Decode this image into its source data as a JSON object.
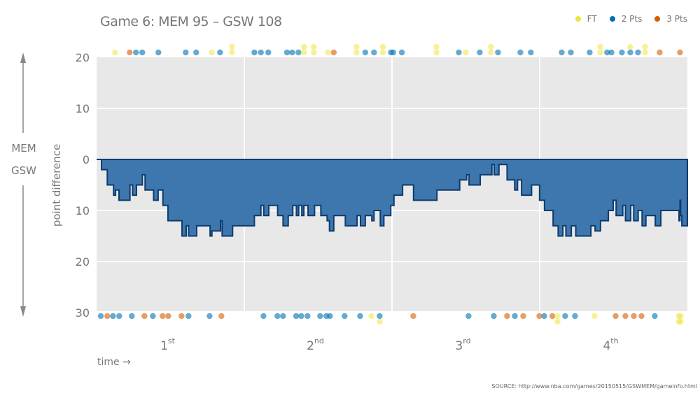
{
  "title": "Game 6: MEM 95  –  GSW 108",
  "legend": [
    {
      "label": "FT",
      "color": "#f0e442"
    },
    {
      "label": "2 Pts",
      "color": "#0072b2"
    },
    {
      "label": "3 Pts",
      "color": "#d55e00"
    }
  ],
  "side_labels": {
    "top": "MEM",
    "bottom": "GSW"
  },
  "source": "SOURCE: http://www.nba.com/games/20150515/GSWMEM/gameinfo.html",
  "chart_data": {
    "type": "area",
    "subtype": "step",
    "title": "Game 6: MEM 95  –  GSW 108",
    "xlabel": "time →",
    "ylabel": "point difference",
    "xlim": [
      0,
      48
    ],
    "ylim": [
      -30,
      20
    ],
    "y_ticks": [
      {
        "value": 20,
        "label": "20"
      },
      {
        "value": 10,
        "label": "10"
      },
      {
        "value": 0,
        "label": "0"
      },
      {
        "value": -10,
        "label": "10"
      },
      {
        "value": -20,
        "label": "20"
      },
      {
        "value": -30,
        "label": "30"
      }
    ],
    "x_ticks": [
      {
        "value": 6,
        "label": "1",
        "sup": "st"
      },
      {
        "value": 18,
        "label": "2",
        "sup": "nd"
      },
      {
        "value": 30,
        "label": "3",
        "sup": "rd"
      },
      {
        "value": 42,
        "label": "4",
        "sup": "th"
      }
    ],
    "quarter_boundaries": [
      12,
      24,
      36
    ],
    "grid": true,
    "fill_color": "#2e6ca8",
    "line_color": "#0d3b6e",
    "series": [
      {
        "points": [
          [
            0,
            0
          ],
          [
            0.4,
            -2
          ],
          [
            0.87,
            -5
          ],
          [
            1.38,
            -7
          ],
          [
            1.54,
            -6
          ],
          [
            1.82,
            -8
          ],
          [
            2.71,
            -5
          ],
          [
            2.92,
            -7
          ],
          [
            3.24,
            -5
          ],
          [
            3.72,
            -3
          ],
          [
            3.94,
            -6
          ],
          [
            4.63,
            -8
          ],
          [
            5.0,
            -6
          ],
          [
            5.39,
            -9
          ],
          [
            5.8,
            -12
          ],
          [
            6.94,
            -15
          ],
          [
            7.28,
            -13
          ],
          [
            7.47,
            -15
          ],
          [
            8.13,
            -13
          ],
          [
            9.22,
            -15
          ],
          [
            9.37,
            -14
          ],
          [
            10.07,
            -12
          ],
          [
            10.2,
            -15
          ],
          [
            11.05,
            -13
          ],
          [
            12.82,
            -11
          ],
          [
            13.35,
            -9
          ],
          [
            13.58,
            -11
          ],
          [
            13.99,
            -9
          ],
          [
            14.71,
            -11
          ],
          [
            15.15,
            -13
          ],
          [
            15.57,
            -11
          ],
          [
            15.94,
            -9
          ],
          [
            16.23,
            -11
          ],
          [
            16.42,
            -9
          ],
          [
            16.67,
            -11
          ],
          [
            16.84,
            -9
          ],
          [
            17.18,
            -11
          ],
          [
            17.71,
            -9
          ],
          [
            18.22,
            -11
          ],
          [
            18.73,
            -12
          ],
          [
            18.92,
            -14
          ],
          [
            19.27,
            -11
          ],
          [
            20.21,
            -13
          ],
          [
            21.16,
            -11
          ],
          [
            21.44,
            -13
          ],
          [
            21.83,
            -11
          ],
          [
            22.36,
            -12
          ],
          [
            22.54,
            -10
          ],
          [
            23.05,
            -13
          ],
          [
            23.34,
            -11
          ],
          [
            23.9,
            -9
          ],
          [
            24.16,
            -7
          ],
          [
            24.86,
            -5
          ],
          [
            25.75,
            -8
          ],
          [
            27.65,
            -6
          ],
          [
            29.5,
            -4
          ],
          [
            30.07,
            -3
          ],
          [
            30.26,
            -5
          ],
          [
            31.17,
            -3
          ],
          [
            32.12,
            -1
          ],
          [
            32.3,
            -3
          ],
          [
            32.69,
            -1
          ],
          [
            33.35,
            -4
          ],
          [
            33.97,
            -6
          ],
          [
            34.2,
            -4
          ],
          [
            34.53,
            -7
          ],
          [
            35.34,
            -5
          ],
          [
            35.99,
            -8
          ],
          [
            36.39,
            -10
          ],
          [
            37.09,
            -13
          ],
          [
            37.5,
            -15
          ],
          [
            37.88,
            -13
          ],
          [
            38.13,
            -15
          ],
          [
            38.57,
            -13
          ],
          [
            38.93,
            -15
          ],
          [
            40.16,
            -13
          ],
          [
            40.5,
            -14
          ],
          [
            40.94,
            -12
          ],
          [
            41.58,
            -10
          ],
          [
            41.97,
            -8
          ],
          [
            42.21,
            -11
          ],
          [
            42.75,
            -9
          ],
          [
            42.97,
            -12
          ],
          [
            43.39,
            -9
          ],
          [
            43.64,
            -12
          ],
          [
            44.0,
            -10
          ],
          [
            44.32,
            -13
          ],
          [
            44.63,
            -11
          ],
          [
            45.39,
            -13
          ],
          [
            45.84,
            -10
          ],
          [
            47.32,
            -12
          ],
          [
            47.4,
            -8
          ],
          [
            47.45,
            -11
          ],
          [
            47.55,
            -13
          ],
          [
            48,
            -13
          ]
        ]
      }
    ],
    "scoring_events": {
      "MEM": [
        [
          1.5,
          "FT"
        ],
        [
          2.69,
          "3 Pts"
        ],
        [
          3.2,
          "2 Pts"
        ],
        [
          3.71,
          "2 Pts"
        ],
        [
          5.02,
          "2 Pts"
        ],
        [
          7.24,
          "2 Pts"
        ],
        [
          8.09,
          "2 Pts"
        ],
        [
          9.35,
          "FT"
        ],
        [
          10.03,
          "2 Pts"
        ],
        [
          11.0,
          "FT"
        ],
        [
          11.0,
          "FT"
        ],
        [
          12.82,
          "2 Pts"
        ],
        [
          13.35,
          "2 Pts"
        ],
        [
          13.95,
          "2 Pts"
        ],
        [
          15.47,
          "2 Pts"
        ],
        [
          15.89,
          "2 Pts"
        ],
        [
          16.4,
          "2 Pts"
        ],
        [
          16.85,
          "FT"
        ],
        [
          16.85,
          "FT"
        ],
        [
          17.65,
          "FT"
        ],
        [
          17.65,
          "FT"
        ],
        [
          18.79,
          "FT"
        ],
        [
          19.27,
          "3 Pts"
        ],
        [
          21.12,
          "FT"
        ],
        [
          21.12,
          "FT"
        ],
        [
          21.83,
          "2 Pts"
        ],
        [
          22.54,
          "2 Pts"
        ],
        [
          23.25,
          "FT"
        ],
        [
          23.25,
          "FT"
        ],
        [
          23.91,
          "2 Pts"
        ],
        [
          24.1,
          "2 Pts"
        ],
        [
          24.8,
          "2 Pts"
        ],
        [
          27.61,
          "FT"
        ],
        [
          27.61,
          "FT"
        ],
        [
          29.43,
          "2 Pts"
        ],
        [
          29.99,
          "FT"
        ],
        [
          31.13,
          "2 Pts"
        ],
        [
          32.04,
          "FT"
        ],
        [
          32.04,
          "FT"
        ],
        [
          32.61,
          "2 Pts"
        ],
        [
          34.43,
          "2 Pts"
        ],
        [
          35.28,
          "2 Pts"
        ],
        [
          37.79,
          "2 Pts"
        ],
        [
          38.53,
          "2 Pts"
        ],
        [
          40.06,
          "2 Pts"
        ],
        [
          40.92,
          "FT"
        ],
        [
          40.92,
          "FT"
        ],
        [
          41.48,
          "2 Pts"
        ],
        [
          41.83,
          "2 Pts"
        ],
        [
          42.68,
          "2 Pts"
        ],
        [
          43.36,
          "2 Pts"
        ],
        [
          43.36,
          "FT"
        ],
        [
          43.99,
          "2 Pts"
        ],
        [
          44.56,
          "FT"
        ],
        [
          44.56,
          "FT"
        ],
        [
          45.75,
          "3 Pts"
        ],
        [
          47.4,
          "3 Pts"
        ]
      ],
      "GSW": [
        [
          0.34,
          "2 Pts"
        ],
        [
          0.87,
          "3 Pts"
        ],
        [
          1.33,
          "2 Pts"
        ],
        [
          1.84,
          "2 Pts"
        ],
        [
          2.86,
          "2 Pts"
        ],
        [
          3.89,
          "3 Pts"
        ],
        [
          4.57,
          "2 Pts"
        ],
        [
          5.36,
          "3 Pts"
        ],
        [
          5.82,
          "3 Pts"
        ],
        [
          6.9,
          "3 Pts"
        ],
        [
          7.47,
          "2 Pts"
        ],
        [
          9.18,
          "2 Pts"
        ],
        [
          10.14,
          "3 Pts"
        ],
        [
          13.56,
          "2 Pts"
        ],
        [
          14.69,
          "2 Pts"
        ],
        [
          15.15,
          "2 Pts"
        ],
        [
          16.21,
          "2 Pts"
        ],
        [
          16.63,
          "2 Pts"
        ],
        [
          17.14,
          "2 Pts"
        ],
        [
          18.16,
          "2 Pts"
        ],
        [
          18.67,
          "2 Pts"
        ],
        [
          18.96,
          "2 Pts"
        ],
        [
          20.15,
          "2 Pts"
        ],
        [
          21.41,
          "2 Pts"
        ],
        [
          22.32,
          "FT"
        ],
        [
          23.0,
          "2 Pts"
        ],
        [
          23.0,
          "FT"
        ],
        [
          25.73,
          "3 Pts"
        ],
        [
          30.22,
          "2 Pts"
        ],
        [
          32.27,
          "2 Pts"
        ],
        [
          33.35,
          "3 Pts"
        ],
        [
          33.98,
          "2 Pts"
        ],
        [
          34.66,
          "3 Pts"
        ],
        [
          35.97,
          "3 Pts"
        ],
        [
          36.37,
          "2 Pts"
        ],
        [
          37.03,
          "3 Pts"
        ],
        [
          37.45,
          "FT"
        ],
        [
          37.45,
          "FT"
        ],
        [
          38.07,
          "2 Pts"
        ],
        [
          38.87,
          "2 Pts"
        ],
        [
          40.46,
          "FT"
        ],
        [
          42.17,
          "3 Pts"
        ],
        [
          42.96,
          "3 Pts"
        ],
        [
          43.65,
          "3 Pts"
        ],
        [
          44.27,
          "3 Pts"
        ],
        [
          45.35,
          "2 Pts"
        ],
        [
          47.3,
          "FT"
        ],
        [
          47.3,
          "FT"
        ],
        [
          47.45,
          "FT"
        ],
        [
          47.45,
          "FT"
        ]
      ]
    }
  }
}
